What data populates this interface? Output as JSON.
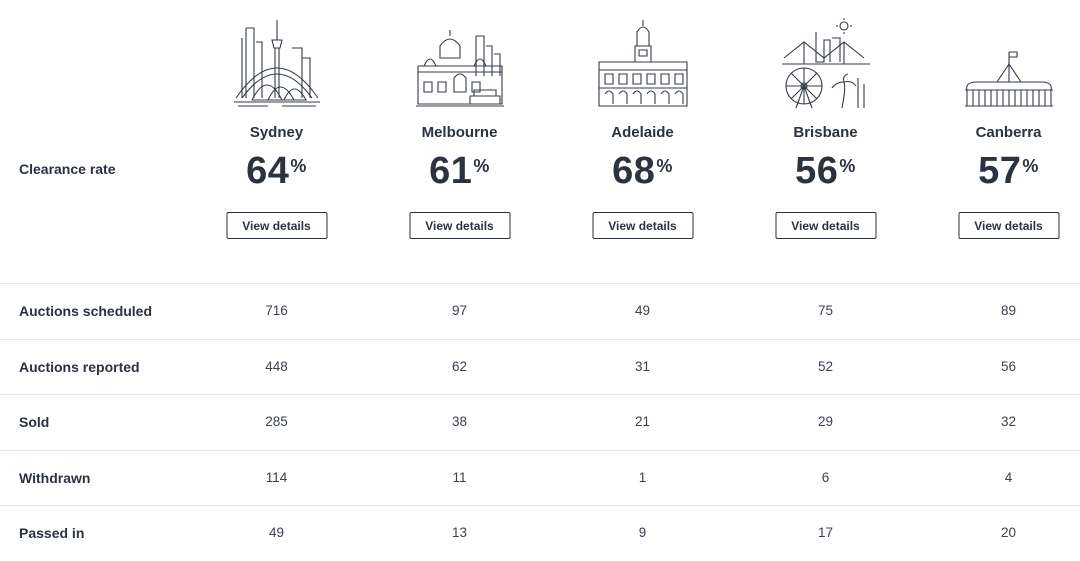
{
  "clearance_label": "Clearance rate",
  "button_label": "View details",
  "percent_sign": "%",
  "cities": [
    {
      "name": "Sydney",
      "rate": "64",
      "icon": "sydney-skyline-icon"
    },
    {
      "name": "Melbourne",
      "rate": "61",
      "icon": "melbourne-skyline-icon"
    },
    {
      "name": "Adelaide",
      "rate": "68",
      "icon": "adelaide-town-hall-icon"
    },
    {
      "name": "Brisbane",
      "rate": "56",
      "icon": "brisbane-skyline-icon"
    },
    {
      "name": "Canberra",
      "rate": "57",
      "icon": "canberra-parliament-icon"
    }
  ],
  "rows": [
    {
      "label": "Auctions scheduled",
      "values": [
        "716",
        "97",
        "49",
        "75",
        "89"
      ]
    },
    {
      "label": "Auctions reported",
      "values": [
        "448",
        "62",
        "31",
        "52",
        "56"
      ]
    },
    {
      "label": "Sold",
      "values": [
        "285",
        "38",
        "21",
        "29",
        "32"
      ]
    },
    {
      "label": "Withdrawn",
      "values": [
        "114",
        "11",
        "1",
        "6",
        "4"
      ]
    },
    {
      "label": "Passed in",
      "values": [
        "49",
        "13",
        "9",
        "17",
        "20"
      ]
    }
  ]
}
